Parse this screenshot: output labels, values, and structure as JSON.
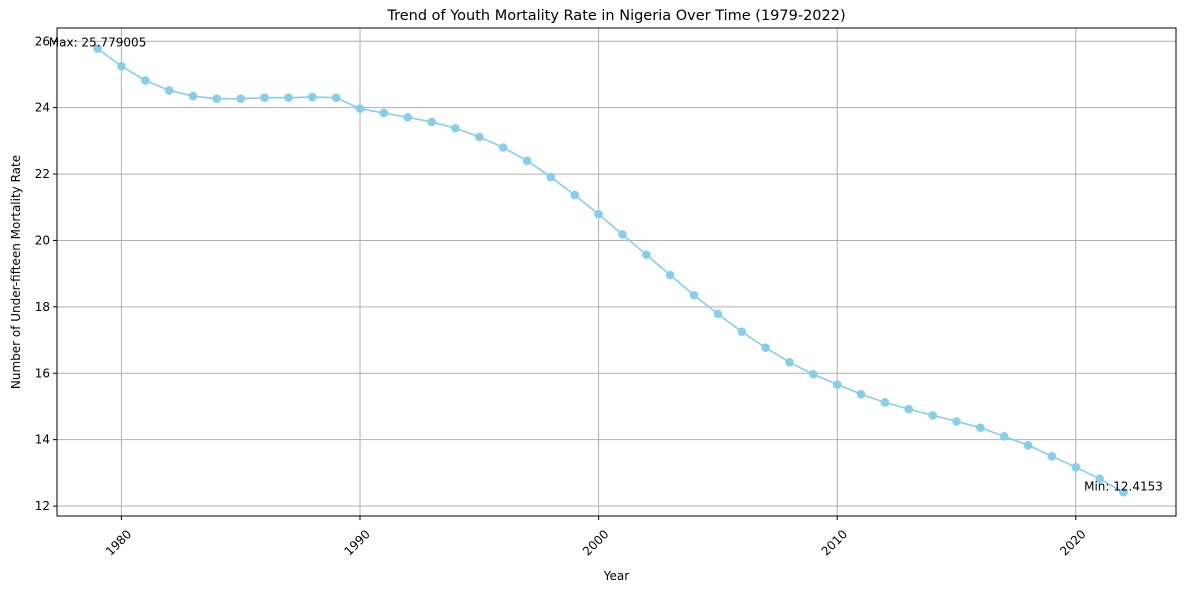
{
  "chart_data": {
    "type": "line",
    "title": "Trend of Youth Mortality Rate in Nigeria Over Time (1979-2022)",
    "xlabel": "Year",
    "ylabel": "Number of Under-fifteen Mortality Rate",
    "xlim": [
      1977.3,
      2024.2
    ],
    "ylim": [
      11.7,
      26.4
    ],
    "xticks": [
      1980,
      1990,
      2000,
      2010,
      2020
    ],
    "yticks": [
      12,
      14,
      16,
      18,
      20,
      22,
      24,
      26
    ],
    "grid": true,
    "line_color": "#87CEEB",
    "series": [
      {
        "x": [
          1979,
          1980,
          1981,
          1982,
          1983,
          1984,
          1985,
          1986,
          1987,
          1988,
          1989,
          1990,
          1991,
          1992,
          1993,
          1994,
          1995,
          1996,
          1997,
          1998,
          1999,
          2000,
          2001,
          2002,
          2003,
          2004,
          2005,
          2006,
          2007,
          2008,
          2009,
          2010,
          2011,
          2012,
          2013,
          2014,
          2015,
          2016,
          2017,
          2018,
          2019,
          2020,
          2021,
          2022
        ],
        "values": [
          25.779005,
          25.25,
          24.82,
          24.52,
          24.35,
          24.27,
          24.27,
          24.3,
          24.3,
          24.32,
          24.3,
          23.97,
          23.84,
          23.71,
          23.57,
          23.38,
          23.12,
          22.8,
          22.4,
          21.91,
          21.37,
          20.79,
          20.18,
          19.57,
          18.96,
          18.35,
          17.79,
          17.25,
          16.77,
          16.33,
          15.97,
          15.66,
          15.37,
          15.12,
          14.92,
          14.73,
          14.55,
          14.36,
          14.1,
          13.83,
          13.5,
          13.17,
          12.82,
          12.4153
        ]
      }
    ],
    "annotations": [
      {
        "label": "Max: 25.779005",
        "x": 1979,
        "y": 25.779005
      },
      {
        "label": "Min: 12.4153",
        "x": 2022,
        "y": 12.4153
      }
    ]
  }
}
